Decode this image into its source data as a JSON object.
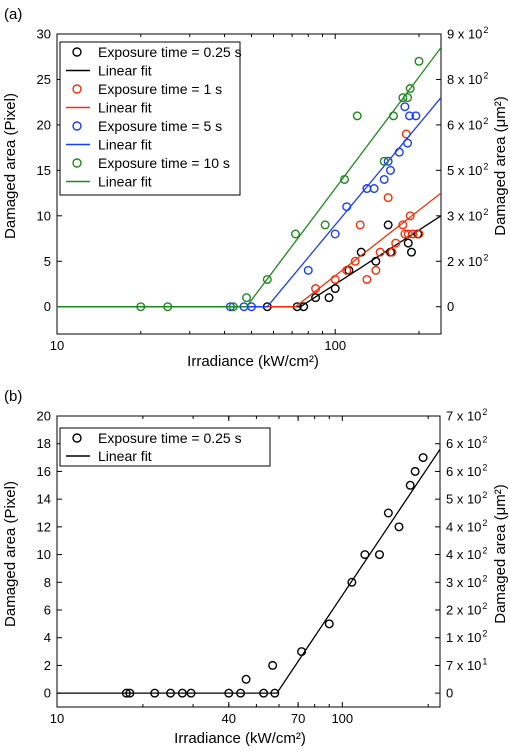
{
  "chart_data": [
    {
      "type": "scatter",
      "panel_label": "(a)",
      "xlabel": "Irradiance (kW/cm²)",
      "ylabel": "Damaged area  (Pixel)",
      "y2label": "Damaged area (μm²)",
      "x_scale": "log",
      "xlim": [
        10,
        240
      ],
      "ylim": [
        -3,
        30
      ],
      "x_ticks": [
        {
          "v": 10,
          "label": "10"
        },
        {
          "v": 100,
          "label": "100"
        }
      ],
      "y_ticks": [
        {
          "v": 0,
          "label": "0"
        },
        {
          "v": 5,
          "label": "5"
        },
        {
          "v": 10,
          "label": "10"
        },
        {
          "v": 15,
          "label": "15"
        },
        {
          "v": 20,
          "label": "20"
        },
        {
          "v": 25,
          "label": "25"
        },
        {
          "v": 30,
          "label": "30"
        }
      ],
      "y2_ticks": [
        {
          "v": 0,
          "label": "0"
        },
        {
          "v": 5,
          "label": "2 x 10",
          "exp": "2"
        },
        {
          "v": 10,
          "label": "3 x 10",
          "exp": "2"
        },
        {
          "v": 15,
          "label": "5 x 10",
          "exp": "2"
        },
        {
          "v": 20,
          "label": "6 x 10",
          "exp": "2"
        },
        {
          "v": 25,
          "label": "8 x 10",
          "exp": "2"
        },
        {
          "v": 30,
          "label": "9 x 10",
          "exp": "2"
        }
      ],
      "legend_position": "top-left",
      "legend": [
        "Exposure time = 0.25 s",
        "Linear fit",
        "Exposure time = 1 s",
        "Linear fit",
        "Exposure time = 5 s",
        "Linear fit",
        "Exposure time = 10 s",
        "Linear fit"
      ],
      "series": [
        {
          "color": "#000000",
          "points": [
            [
              57,
              0
            ],
            [
              73,
              0
            ],
            [
              77,
              0
            ],
            [
              85,
              1
            ],
            [
              95,
              1
            ],
            [
              100,
              2
            ],
            [
              112,
              4
            ],
            [
              124,
              6
            ],
            [
              140,
              5
            ],
            [
              155,
              9
            ],
            [
              158,
              6
            ],
            [
              183,
              7
            ],
            [
              188,
              6
            ],
            [
              198,
              8
            ]
          ],
          "fit": [
            [
              10,
              0
            ],
            [
              75,
              0
            ],
            [
              240,
              10
            ]
          ]
        },
        {
          "color": "#ff2a00",
          "points": [
            [
              85,
              2
            ],
            [
              100,
              3
            ],
            [
              110,
              4
            ],
            [
              118,
              5
            ],
            [
              123,
              9
            ],
            [
              130,
              3
            ],
            [
              140,
              4
            ],
            [
              145,
              6
            ],
            [
              155,
              12
            ],
            [
              160,
              6
            ],
            [
              165,
              7
            ],
            [
              175,
              9
            ],
            [
              178,
              8
            ],
            [
              180,
              19
            ],
            [
              183,
              8
            ],
            [
              186,
              10
            ],
            [
              190,
              8
            ],
            [
              200,
              8
            ]
          ],
          "fit": [
            [
              10,
              0
            ],
            [
              72,
              0
            ],
            [
              240,
              12.5
            ]
          ]
        },
        {
          "color": "#1a3cff",
          "points": [
            [
              42,
              0
            ],
            [
              47,
              0
            ],
            [
              50,
              0
            ],
            [
              80,
              4
            ],
            [
              100,
              8
            ],
            [
              110,
              11
            ],
            [
              130,
              13
            ],
            [
              138,
              13
            ],
            [
              150,
              14
            ],
            [
              155,
              16
            ],
            [
              158,
              15
            ],
            [
              170,
              17
            ],
            [
              178,
              22
            ],
            [
              182,
              18
            ],
            [
              185,
              21
            ],
            [
              195,
              21
            ]
          ],
          "fit": [
            [
              10,
              0
            ],
            [
              57,
              0
            ],
            [
              240,
              23
            ]
          ]
        },
        {
          "color": "#1a8a1a",
          "points": [
            [
              20,
              0
            ],
            [
              25,
              0
            ],
            [
              43,
              0
            ],
            [
              48,
              1
            ],
            [
              57,
              3
            ],
            [
              72,
              8
            ],
            [
              92,
              9
            ],
            [
              108,
              14
            ],
            [
              120,
              21
            ],
            [
              150,
              16
            ],
            [
              162,
              21
            ],
            [
              175,
              23
            ],
            [
              182,
              23
            ],
            [
              186,
              24
            ],
            [
              200,
              27
            ]
          ],
          "fit": [
            [
              10,
              0
            ],
            [
              48,
              0
            ],
            [
              240,
              28.5
            ]
          ]
        }
      ]
    },
    {
      "type": "scatter",
      "panel_label": "(b)",
      "xlabel": "Irradiance (kW/cm²)",
      "ylabel": "Damaged area  (Pixel)",
      "y2label": "Damaged area (μm²)",
      "x_scale": "log",
      "xlim": [
        10,
        220
      ],
      "ylim": [
        -1,
        20
      ],
      "x_ticks": [
        {
          "v": 10,
          "label": "10"
        },
        {
          "v": 40,
          "label": "40"
        },
        {
          "v": 70,
          "label": "70"
        },
        {
          "v": 100,
          "label": "100"
        }
      ],
      "y_ticks": [
        {
          "v": 0,
          "label": "0"
        },
        {
          "v": 2,
          "label": "2"
        },
        {
          "v": 4,
          "label": "4"
        },
        {
          "v": 6,
          "label": "6"
        },
        {
          "v": 8,
          "label": "8"
        },
        {
          "v": 10,
          "label": "10"
        },
        {
          "v": 12,
          "label": "12"
        },
        {
          "v": 14,
          "label": "14"
        },
        {
          "v": 16,
          "label": "16"
        },
        {
          "v": 18,
          "label": "18"
        },
        {
          "v": 20,
          "label": "20"
        }
      ],
      "y2_ticks": [
        {
          "v": 0,
          "label": "0"
        },
        {
          "v": 2,
          "label": "7 x 10",
          "exp": "1"
        },
        {
          "v": 4,
          "label": "1 x 10",
          "exp": "2"
        },
        {
          "v": 6,
          "label": "2 x 10",
          "exp": "2"
        },
        {
          "v": 8,
          "label": "3 x 10",
          "exp": "2"
        },
        {
          "v": 10,
          "label": "4 x 10",
          "exp": "2"
        },
        {
          "v": 12,
          "label": "4 x 10",
          "exp": "2"
        },
        {
          "v": 14,
          "label": "5 x 10",
          "exp": "2"
        },
        {
          "v": 16,
          "label": "6 x 10",
          "exp": "2"
        },
        {
          "v": 18,
          "label": "6 x 10",
          "exp": "2"
        },
        {
          "v": 20,
          "label": "7 x 10",
          "exp": "2"
        }
      ],
      "legend_position": "top-left",
      "legend": [
        "Exposure time = 0.25 s",
        "Linear fit"
      ],
      "series": [
        {
          "color": "#000000",
          "points": [
            [
              17.5,
              0
            ],
            [
              18,
              0
            ],
            [
              22,
              0
            ],
            [
              25,
              0
            ],
            [
              27.5,
              0
            ],
            [
              29.5,
              0
            ],
            [
              40,
              0
            ],
            [
              44,
              0
            ],
            [
              46,
              1
            ],
            [
              53,
              0
            ],
            [
              57,
              2
            ],
            [
              58,
              0
            ],
            [
              72,
              3
            ],
            [
              90,
              5
            ],
            [
              108,
              8
            ],
            [
              120,
              10
            ],
            [
              135,
              10
            ],
            [
              145,
              13
            ],
            [
              158,
              12
            ],
            [
              173,
              15
            ],
            [
              180,
              16
            ],
            [
              192,
              17
            ]
          ],
          "fit": [
            [
              10,
              0
            ],
            [
              59,
              0
            ],
            [
              220,
              17.6
            ]
          ]
        }
      ]
    }
  ]
}
